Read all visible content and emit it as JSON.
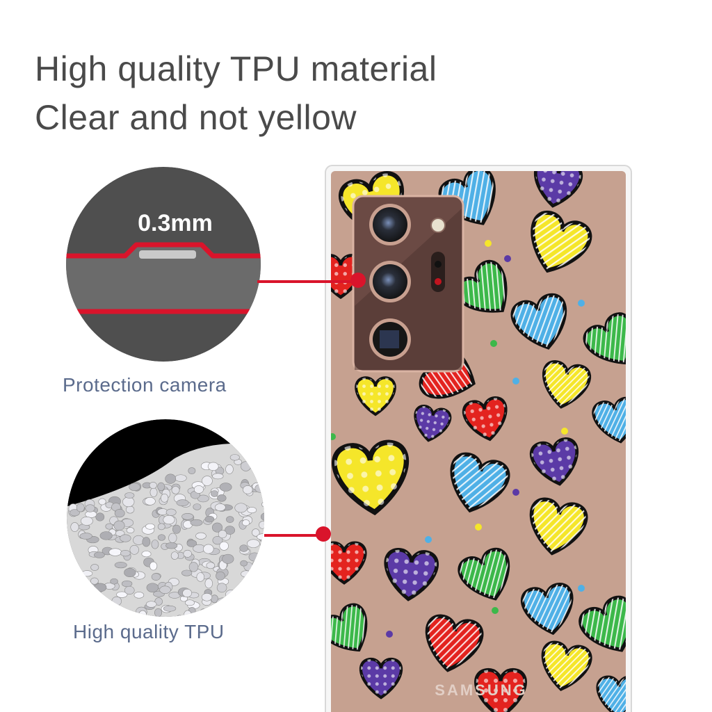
{
  "headline": {
    "line1": "High quality TPU material",
    "line2": "Clear and not yellow"
  },
  "feature_camera": {
    "thickness_label": "0.3mm",
    "caption": "Protection camera"
  },
  "feature_material": {
    "caption": "High quality TPU"
  },
  "phone": {
    "brand_logo": "SAMSUNG",
    "body_color": "#c9a595",
    "camera_module_color": "#6b4a44"
  },
  "colors": {
    "accent_red": "#d9142b",
    "heading_text": "#4a4a4a",
    "caption_text": "#5b6b8c",
    "hearts": [
      "#f5e62a",
      "#4fb0e6",
      "#5b3aa6",
      "#3cb84a",
      "#e3231f"
    ]
  },
  "icons": [
    "heart-pattern",
    "camera-lens-icon",
    "flash-icon"
  ]
}
